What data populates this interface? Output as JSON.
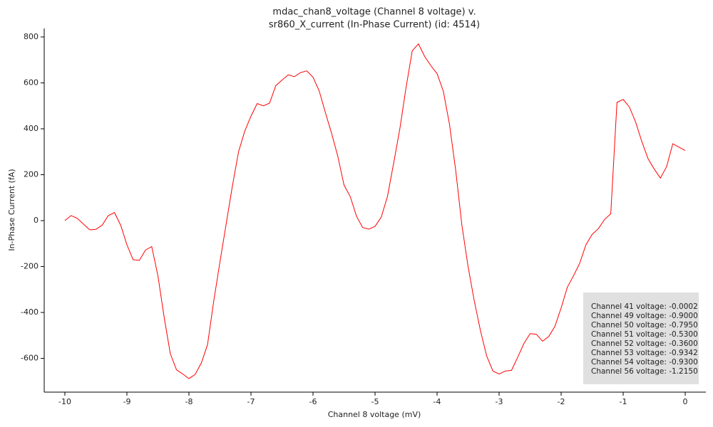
{
  "chart_data": {
    "type": "line",
    "title": [
      "mdac_chan8_voltage (Channel 8 voltage) v.",
      "sr860_X_current (In-Phase Current) (id: 4514)"
    ],
    "x_label": "Channel 8 voltage (mV)",
    "y_label": "In-Phase Current (fA)",
    "x": [
      -10,
      -9.9,
      -9.8,
      -9.7,
      -9.6,
      -9.5,
      -9.4,
      -9.3,
      -9.2,
      -9.1,
      -9,
      -8.9,
      -8.8,
      -8.7,
      -8.6,
      -8.5,
      -8.4,
      -8.3,
      -8.2,
      -8.1,
      -8,
      -7.9,
      -7.8,
      -7.7,
      -7.6,
      -7.5,
      -7.4,
      -7.3,
      -7.2,
      -7.1,
      -7,
      -6.9,
      -6.8,
      -6.7,
      -6.6,
      -6.5,
      -6.4,
      -6.3,
      -6.2,
      -6.1,
      -6,
      -5.9,
      -5.8,
      -5.7,
      -5.6,
      -5.5,
      -5.4,
      -5.3,
      -5.2,
      -5.1,
      -5,
      -4.9,
      -4.8,
      -4.7,
      -4.6,
      -4.5,
      -4.4,
      -4.3,
      -4.2,
      -4.1,
      -4,
      -3.9,
      -3.8,
      -3.7,
      -3.6,
      -3.5,
      -3.4,
      -3.3,
      -3.2,
      -3.1,
      -3,
      -2.9,
      -2.8,
      -2.7,
      -2.6,
      -2.5,
      -2.4,
      -2.3,
      -2.2,
      -2.1,
      -2,
      -1.9,
      -1.8,
      -1.7,
      -1.6,
      -1.5,
      -1.4,
      -1.3,
      -1.2,
      -1.1,
      -1,
      -0.9,
      -0.8,
      -0.7,
      -0.6,
      -0.5,
      -0.4,
      -0.3,
      -0.2,
      -0.1,
      0
    ],
    "series": [
      {
        "name": "sr860_X_current",
        "color": "#ff0000",
        "values": [
          0,
          22,
          10,
          -15,
          -40,
          -38,
          -20,
          22,
          35,
          -20,
          -105,
          -170,
          -173,
          -128,
          -113,
          -240,
          -420,
          -580,
          -650,
          -668,
          -688,
          -670,
          -620,
          -540,
          -350,
          -180,
          -15,
          150,
          300,
          390,
          455,
          510,
          500,
          512,
          588,
          612,
          635,
          627,
          645,
          652,
          625,
          565,
          470,
          380,
          280,
          155,
          105,
          20,
          -30,
          -37,
          -25,
          15,
          105,
          250,
          400,
          580,
          740,
          770,
          715,
          675,
          640,
          565,
          420,
          220,
          -20,
          -200,
          -350,
          -480,
          -590,
          -655,
          -668,
          -655,
          -652,
          -595,
          -535,
          -492,
          -495,
          -525,
          -505,
          -460,
          -380,
          -290,
          -240,
          -185,
          -105,
          -60,
          -35,
          5,
          30,
          515,
          528,
          495,
          430,
          345,
          270,
          225,
          185,
          235,
          335,
          320,
          305
        ]
      }
    ],
    "xlim": [
      -10.333,
      0.333
    ],
    "ylim": [
      -747,
      837
    ],
    "xticks": [
      -10,
      -9,
      -8,
      -7,
      -6,
      -5,
      -4,
      -3,
      -2,
      -1,
      0
    ],
    "yticks": [
      -600,
      -400,
      -200,
      0,
      200,
      400,
      600,
      800
    ],
    "annotation": [
      "Channel 41 voltage: -0.0002",
      "Channel 49 voltage: -0.9000",
      "Channel 50 voltage: -0.7950",
      "Channel 51 voltage: -0.5300",
      "Channel 52 voltage: -0.3600",
      "Channel 53 voltage: -0.9342",
      "Channel 54 voltage: -0.9300",
      "Channel 56 voltage: -1.2150"
    ]
  }
}
